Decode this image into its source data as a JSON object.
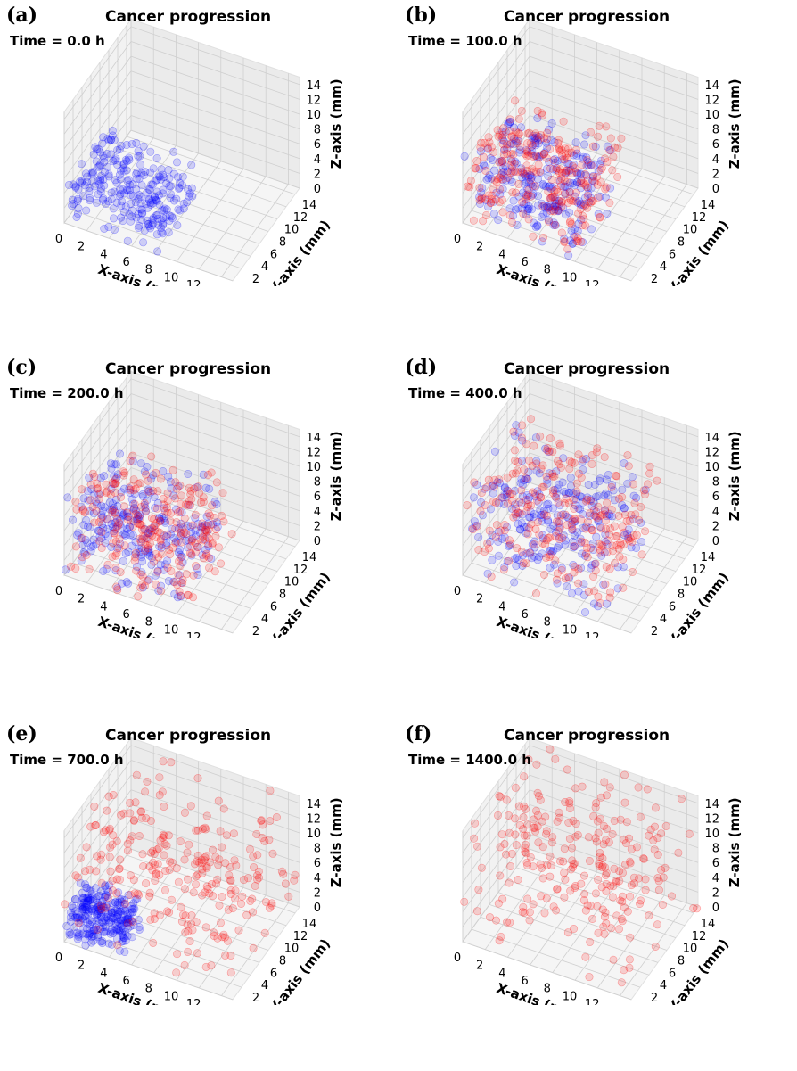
{
  "figure": {
    "panels": [
      {
        "label": "(a)",
        "title": "Cancer progression",
        "time": "Time = 0.0 h"
      },
      {
        "label": "(b)",
        "title": "Cancer progression",
        "time": "Time = 100.0 h"
      },
      {
        "label": "(c)",
        "title": "Cancer progression",
        "time": "Time = 200.0 h"
      },
      {
        "label": "(d)",
        "title": "Cancer progression",
        "time": "Time = 400.0 h"
      },
      {
        "label": "(e)",
        "title": "Cancer progression",
        "time": "Time = 700.0 h"
      },
      {
        "label": "(f)",
        "title": "Cancer progression",
        "time": "Time = 1400.0 h"
      }
    ]
  },
  "chart_data": [
    {
      "type": "scatter3d",
      "title": "Cancer progression",
      "subtitle": "Time = 0.0 h",
      "xlabel": "X-axis (mm)",
      "ylabel": "Y-axis (mm)",
      "zlabel": "Z-axis (mm)",
      "xlim": [
        0,
        15
      ],
      "ylim": [
        0,
        15
      ],
      "zlim": [
        0,
        15
      ],
      "ticks": [
        0,
        2,
        4,
        6,
        8,
        10,
        12,
        14
      ],
      "grid": true,
      "series": [
        {
          "color": "#0000ff",
          "x_extent": [
            0,
            8.5
          ],
          "y_extent": [
            0,
            8.5
          ],
          "z_extent": [
            0,
            6.5
          ]
        }
      ]
    },
    {
      "type": "scatter3d",
      "title": "Cancer progression",
      "subtitle": "Time = 100.0 h",
      "xlabel": "X-axis (mm)",
      "ylabel": "Y-axis (mm)",
      "zlabel": "Z-axis (mm)",
      "xlim": [
        0,
        15
      ],
      "ylim": [
        0,
        15
      ],
      "zlim": [
        0,
        15
      ],
      "ticks": [
        0,
        2,
        4,
        6,
        8,
        10,
        12,
        14
      ],
      "grid": true,
      "series": [
        {
          "color": "#0000ff",
          "x_extent": [
            0,
            10
          ],
          "y_extent": [
            0,
            10
          ],
          "z_extent": [
            0,
            9
          ]
        },
        {
          "color": "#ff0000",
          "x_extent": [
            0,
            10.5
          ],
          "y_extent": [
            0,
            10.5
          ],
          "z_extent": [
            0,
            9.5
          ]
        }
      ]
    },
    {
      "type": "scatter3d",
      "title": "Cancer progression",
      "subtitle": "Time = 200.0 h",
      "xlabel": "X-axis (mm)",
      "ylabel": "Y-axis (mm)",
      "zlabel": "Z-axis (mm)",
      "xlim": [
        0,
        15
      ],
      "ylim": [
        0,
        15
      ],
      "zlim": [
        0,
        15
      ],
      "ticks": [
        0,
        2,
        4,
        6,
        8,
        10,
        12,
        14
      ],
      "grid": true,
      "series": [
        {
          "color": "#0000ff",
          "x_extent": [
            0,
            10.5
          ],
          "y_extent": [
            0,
            10.5
          ],
          "z_extent": [
            0,
            10
          ]
        },
        {
          "color": "#ff0000",
          "x_extent": [
            0,
            11
          ],
          "y_extent": [
            0,
            11
          ],
          "z_extent": [
            0,
            10.5
          ]
        }
      ]
    },
    {
      "type": "scatter3d",
      "title": "Cancer progression",
      "subtitle": "Time = 400.0 h",
      "xlabel": "X-axis (mm)",
      "ylabel": "Y-axis (mm)",
      "zlabel": "Z-axis (mm)",
      "xlim": [
        0,
        15
      ],
      "ylim": [
        0,
        15
      ],
      "zlim": [
        0,
        15
      ],
      "ticks": [
        0,
        2,
        4,
        6,
        8,
        10,
        12,
        14
      ],
      "grid": true,
      "series": [
        {
          "color": "#0000ff",
          "x_extent": [
            0,
            12
          ],
          "y_extent": [
            0,
            12
          ],
          "z_extent": [
            0,
            11
          ]
        },
        {
          "color": "#ff0000",
          "x_extent": [
            0,
            13
          ],
          "y_extent": [
            0,
            13
          ],
          "z_extent": [
            0,
            12.5
          ]
        }
      ]
    },
    {
      "type": "scatter3d",
      "title": "Cancer progression",
      "subtitle": "Time = 700.0 h",
      "xlabel": "X-axis (mm)",
      "ylabel": "Y-axis (mm)",
      "zlabel": "Z-axis (mm)",
      "xlim": [
        0,
        15
      ],
      "ylim": [
        0,
        15
      ],
      "zlim": [
        0,
        15
      ],
      "ticks": [
        0,
        2,
        4,
        6,
        8,
        10,
        12,
        14
      ],
      "grid": true,
      "series": [
        {
          "color": "#0000ff",
          "x_extent": [
            0,
            5
          ],
          "y_extent": [
            0,
            5
          ],
          "z_extent": [
            0,
            5
          ]
        },
        {
          "color": "#ff0000",
          "x_extent": [
            0,
            15
          ],
          "y_extent": [
            0,
            15
          ],
          "z_extent": [
            0,
            15
          ]
        }
      ]
    },
    {
      "type": "scatter3d",
      "title": "Cancer progression",
      "subtitle": "Time = 1400.0 h",
      "xlabel": "X-axis (mm)",
      "ylabel": "Y-axis (mm)",
      "zlabel": "Z-axis (mm)",
      "xlim": [
        0,
        15
      ],
      "ylim": [
        0,
        15
      ],
      "zlim": [
        0,
        15
      ],
      "ticks": [
        0,
        2,
        4,
        6,
        8,
        10,
        12,
        14
      ],
      "grid": true,
      "series": [
        {
          "color": "#ff0000",
          "x_extent": [
            0,
            15
          ],
          "y_extent": [
            0,
            15
          ],
          "z_extent": [
            0,
            15
          ]
        }
      ]
    }
  ]
}
